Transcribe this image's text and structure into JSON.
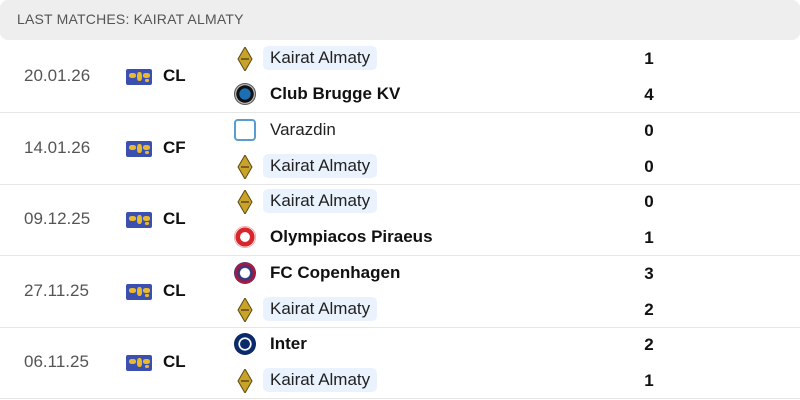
{
  "header": {
    "title": "LAST MATCHES: KAIRAT ALMATY"
  },
  "colors": {
    "highlight": "#eaf3fd",
    "competition_icon": "#3b4fb0"
  },
  "matches": [
    {
      "date": "20.01.26",
      "competition": "CL",
      "home": {
        "name": "Kairat Almaty",
        "score": "1",
        "logo": "kairat-logo",
        "highlight": true,
        "winner": false
      },
      "away": {
        "name": "Club Brugge KV",
        "score": "4",
        "logo": "club-brugge-logo",
        "highlight": false,
        "winner": true
      }
    },
    {
      "date": "14.01.26",
      "competition": "CF",
      "home": {
        "name": "Varazdin",
        "score": "0",
        "logo": "varazdin-logo",
        "highlight": false,
        "winner": false
      },
      "away": {
        "name": "Kairat Almaty",
        "score": "0",
        "logo": "kairat-logo",
        "highlight": true,
        "winner": false
      }
    },
    {
      "date": "09.12.25",
      "competition": "CL",
      "home": {
        "name": "Kairat Almaty",
        "score": "0",
        "logo": "kairat-logo",
        "highlight": true,
        "winner": false
      },
      "away": {
        "name": "Olympiacos Piraeus",
        "score": "1",
        "logo": "olympiacos-logo",
        "highlight": false,
        "winner": true
      }
    },
    {
      "date": "27.11.25",
      "competition": "CL",
      "home": {
        "name": "FC Copenhagen",
        "score": "3",
        "logo": "fc-copenhagen-logo",
        "highlight": false,
        "winner": true
      },
      "away": {
        "name": "Kairat Almaty",
        "score": "2",
        "logo": "kairat-logo",
        "highlight": true,
        "winner": false
      }
    },
    {
      "date": "06.11.25",
      "competition": "CL",
      "home": {
        "name": "Inter",
        "score": "2",
        "logo": "inter-logo",
        "highlight": false,
        "winner": true
      },
      "away": {
        "name": "Kairat Almaty",
        "score": "1",
        "logo": "kairat-logo",
        "highlight": true,
        "winner": false
      }
    }
  ]
}
